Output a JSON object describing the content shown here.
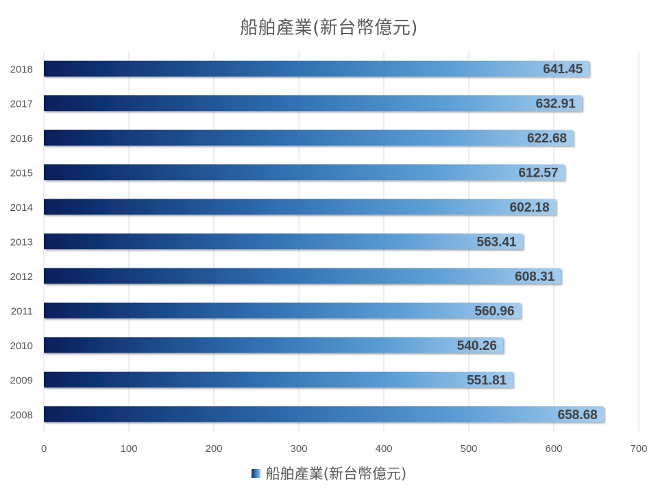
{
  "chart_data": {
    "type": "bar",
    "orientation": "horizontal",
    "title": "船舶產業(新台幣億元)",
    "categories": [
      "2018",
      "2017",
      "2016",
      "2015",
      "2014",
      "2013",
      "2012",
      "2011",
      "2010",
      "2009",
      "2008"
    ],
    "series": [
      {
        "name": "船舶產業(新台幣億元)",
        "values": [
          641.45,
          632.91,
          622.68,
          612.57,
          602.18,
          563.41,
          608.31,
          560.96,
          540.26,
          551.81,
          658.68
        ],
        "labels": [
          "641.45",
          "632.91",
          "622.68",
          "612.57",
          "602.18",
          "563.41",
          "608.31",
          "560.96",
          "540.26",
          "551.81",
          "658.68"
        ]
      }
    ],
    "xlim": [
      0,
      700
    ],
    "xticks": [
      "0",
      "100",
      "200",
      "300",
      "400",
      "500",
      "600",
      "700"
    ],
    "grid": "vertical",
    "legend_position": "bottom",
    "bar_gradient": [
      "#061f5c",
      "#2f6eb0",
      "#5d9fd5",
      "#a6cdee"
    ],
    "label_color": "#404040",
    "axis_text_color": "#595959",
    "grid_color": "#d9d9d9"
  }
}
